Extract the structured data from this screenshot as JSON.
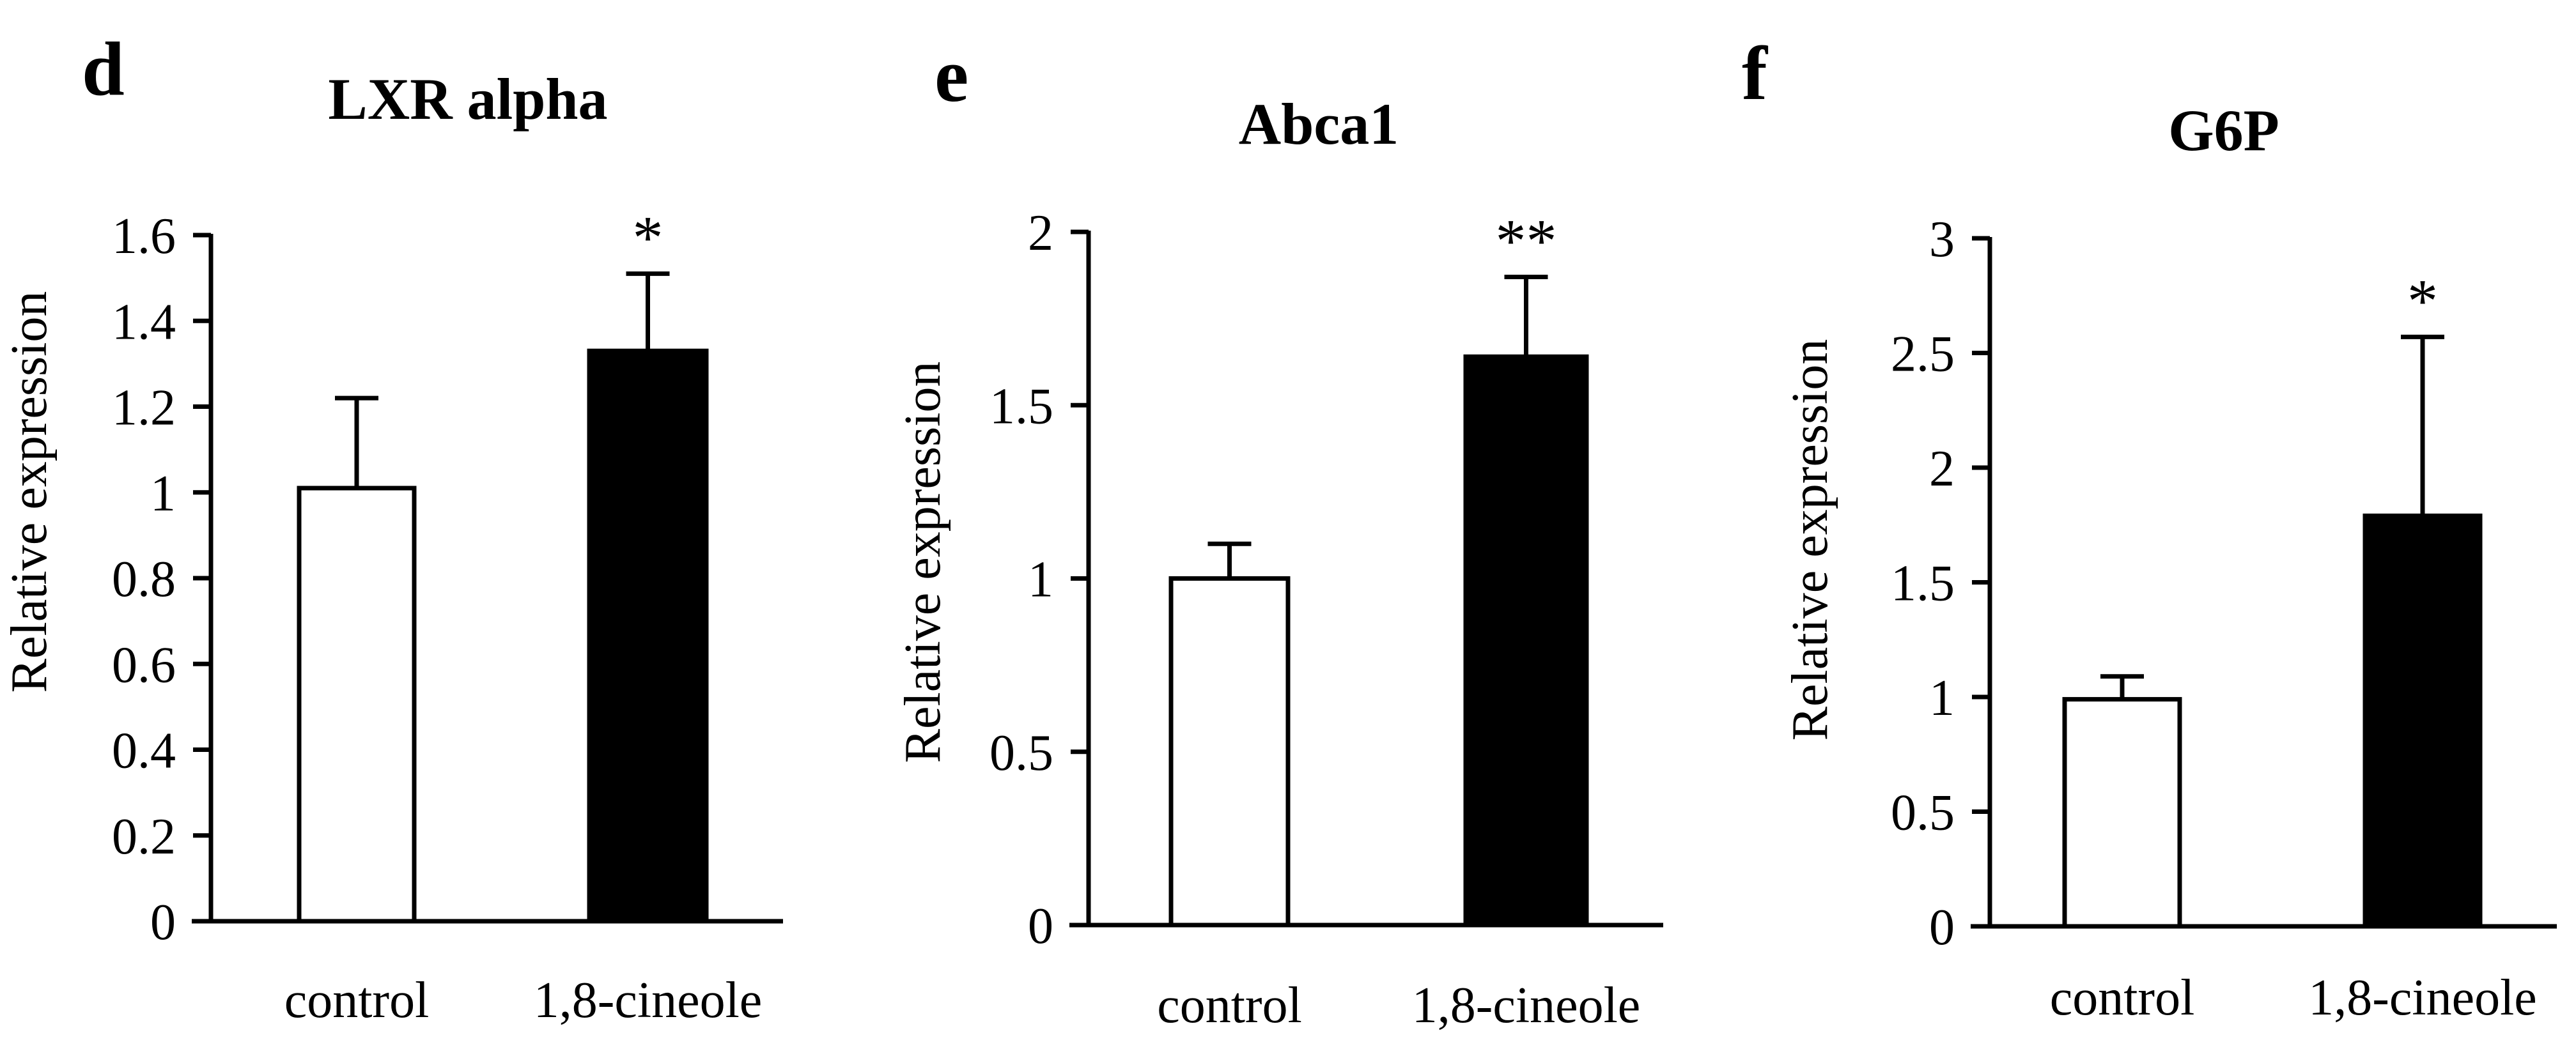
{
  "chart_data": [
    {
      "panel_letter": "d",
      "type": "bar",
      "title": "LXR alpha",
      "ylabel": "Relative expression",
      "xlabel": "",
      "categories": [
        "control",
        "1,8-cineole"
      ],
      "values": [
        1.01,
        1.33
      ],
      "errors": [
        0.21,
        0.18
      ],
      "bar_fills": [
        "#ffffff",
        "#000000"
      ],
      "significance": [
        "",
        "*"
      ],
      "ylim": [
        0,
        1.6
      ],
      "yticks": [
        "0",
        "0.2",
        "0.4",
        "0.6",
        "0.8",
        "1",
        "1.2",
        "1.4",
        "1.6"
      ],
      "grid": false
    },
    {
      "panel_letter": "e",
      "type": "bar",
      "title": "Abca1",
      "ylabel": "Relative expression",
      "xlabel": "",
      "categories": [
        "control",
        "1,8-cineole"
      ],
      "values": [
        1.0,
        1.64
      ],
      "errors": [
        0.1,
        0.23
      ],
      "bar_fills": [
        "#ffffff",
        "#000000"
      ],
      "significance": [
        "",
        "**"
      ],
      "ylim": [
        0,
        2
      ],
      "yticks": [
        "0",
        "0.5",
        "1",
        "1.5",
        "2"
      ],
      "grid": false
    },
    {
      "panel_letter": "f",
      "type": "bar",
      "title": "G6P",
      "ylabel": "Relative expression",
      "xlabel": "",
      "categories": [
        "control",
        "1,8-cineole"
      ],
      "values": [
        0.99,
        1.79
      ],
      "errors": [
        0.1,
        0.78
      ],
      "bar_fills": [
        "#ffffff",
        "#000000"
      ],
      "significance": [
        "",
        "*"
      ],
      "ylim": [
        0,
        3
      ],
      "yticks": [
        "0",
        "0.5",
        "1",
        "1.5",
        "2",
        "2.5",
        "3"
      ],
      "grid": false
    }
  ]
}
